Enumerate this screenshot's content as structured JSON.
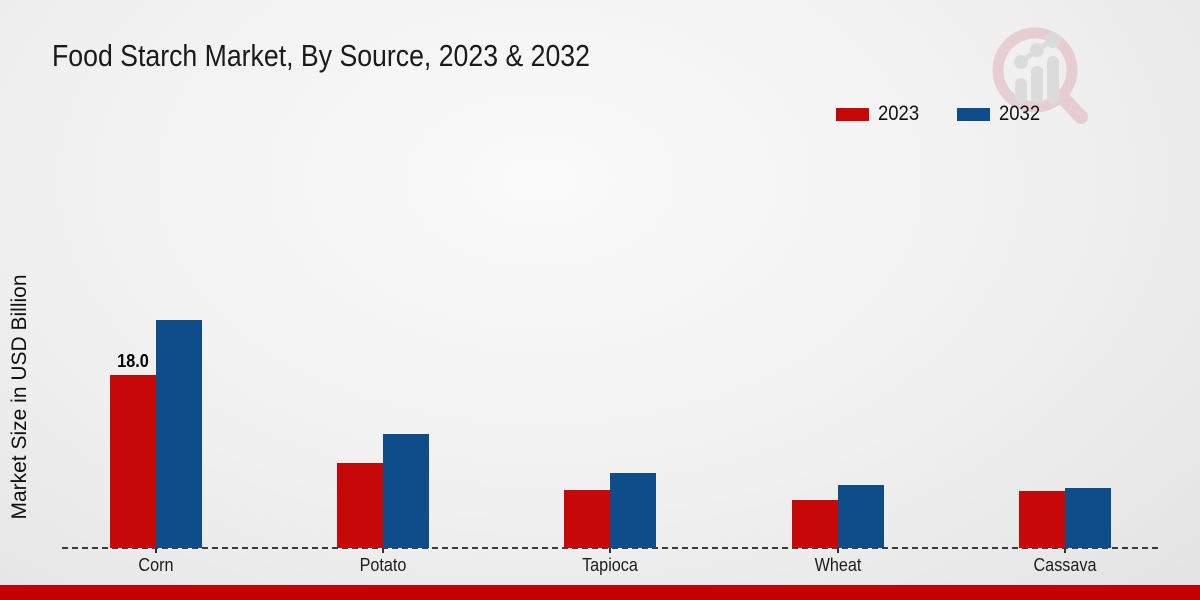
{
  "title": "Food Starch Market, By Source, 2023 & 2032",
  "ylabel": "Market Size in USD Billion",
  "legend": [
    {
      "label": "2023",
      "color": "#c70808"
    },
    {
      "label": "2032",
      "color": "#0e4c8a"
    }
  ],
  "colors": {
    "series_2023": "#c70808",
    "series_2032": "#0e4c8a",
    "bottom_band": "#c40000",
    "baseline": "#3c3c3c"
  },
  "watermark_icon": "magnifier-bar-chart-logo-icon",
  "chart_data": {
    "type": "bar",
    "title": "Food Starch Market, By Source, 2023 & 2032",
    "xlabel": "",
    "ylabel": "Market Size in USD Billion",
    "categories": [
      "Corn",
      "Potato",
      "Tapioca",
      "Wheat",
      "Cassava"
    ],
    "series": [
      {
        "name": "2023",
        "color": "#c70808",
        "values": [
          18.0,
          8.9,
          6.0,
          5.0,
          5.9
        ]
      },
      {
        "name": "2032",
        "color": "#0e4c8a",
        "values": [
          23.7,
          11.9,
          7.8,
          6.6,
          6.2
        ]
      }
    ],
    "value_labels": [
      {
        "category_index": 0,
        "series_index": 0,
        "text": "18.0"
      }
    ],
    "ylim": [
      0,
      26
    ],
    "grid": false,
    "axis_style": "dashed-baseline-only",
    "legend_position": "top-right"
  }
}
